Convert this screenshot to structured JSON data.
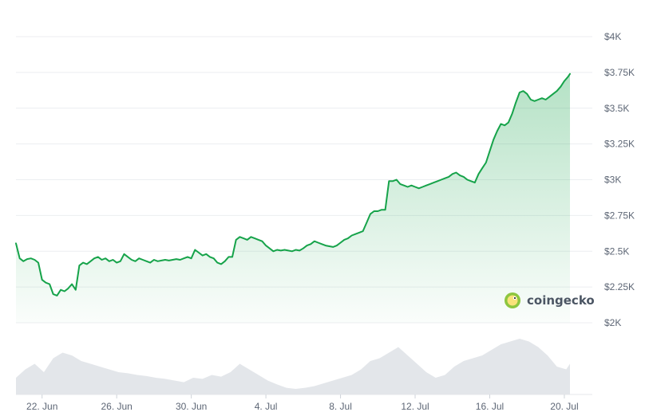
{
  "chart_data": {
    "type": "area",
    "title": "",
    "xlabel": "",
    "ylabel": "",
    "ylim": [
      2000,
      4000
    ],
    "y_ticks": [
      {
        "value": 4000,
        "label": "$4K"
      },
      {
        "value": 3750,
        "label": "$3.75K"
      },
      {
        "value": 3500,
        "label": "$3.5K"
      },
      {
        "value": 3250,
        "label": "$3.25K"
      },
      {
        "value": 3000,
        "label": "$3K"
      },
      {
        "value": 2750,
        "label": "$2.75K"
      },
      {
        "value": 2500,
        "label": "$2.5K"
      },
      {
        "value": 2250,
        "label": "$2.25K"
      },
      {
        "value": 2000,
        "label": "$2K"
      }
    ],
    "x_range": [
      0,
      30.9
    ],
    "x_ticks": [
      {
        "day": 1.4,
        "label": "22. Jun"
      },
      {
        "day": 5.4,
        "label": "26. Jun"
      },
      {
        "day": 9.4,
        "label": "30. Jun"
      },
      {
        "day": 13.4,
        "label": "4. Jul"
      },
      {
        "day": 17.4,
        "label": "8. Jul"
      },
      {
        "day": 21.4,
        "label": "12. Jul"
      },
      {
        "day": 25.4,
        "label": "16. Jul"
      },
      {
        "day": 29.4,
        "label": "20. Jul"
      }
    ],
    "grid": true,
    "line_color": "#16a34a",
    "fill_color": "#16a34a",
    "volume_color": "#d9dde3",
    "price_series": [
      [
        0.0,
        2555
      ],
      [
        0.2,
        2450
      ],
      [
        0.4,
        2430
      ],
      [
        0.6,
        2445
      ],
      [
        0.8,
        2450
      ],
      [
        1.0,
        2440
      ],
      [
        1.2,
        2420
      ],
      [
        1.4,
        2300
      ],
      [
        1.6,
        2280
      ],
      [
        1.8,
        2270
      ],
      [
        2.0,
        2200
      ],
      [
        2.2,
        2190
      ],
      [
        2.4,
        2230
      ],
      [
        2.6,
        2220
      ],
      [
        2.8,
        2240
      ],
      [
        3.0,
        2270
      ],
      [
        3.2,
        2230
      ],
      [
        3.4,
        2400
      ],
      [
        3.6,
        2420
      ],
      [
        3.8,
        2410
      ],
      [
        4.0,
        2430
      ],
      [
        4.2,
        2450
      ],
      [
        4.4,
        2460
      ],
      [
        4.6,
        2440
      ],
      [
        4.8,
        2450
      ],
      [
        5.0,
        2430
      ],
      [
        5.2,
        2440
      ],
      [
        5.4,
        2420
      ],
      [
        5.6,
        2430
      ],
      [
        5.8,
        2480
      ],
      [
        6.0,
        2460
      ],
      [
        6.2,
        2440
      ],
      [
        6.4,
        2430
      ],
      [
        6.6,
        2450
      ],
      [
        6.8,
        2440
      ],
      [
        7.0,
        2430
      ],
      [
        7.2,
        2420
      ],
      [
        7.4,
        2440
      ],
      [
        7.6,
        2430
      ],
      [
        7.8,
        2435
      ],
      [
        8.0,
        2440
      ],
      [
        8.2,
        2435
      ],
      [
        8.4,
        2440
      ],
      [
        8.6,
        2445
      ],
      [
        8.8,
        2440
      ],
      [
        9.0,
        2450
      ],
      [
        9.2,
        2460
      ],
      [
        9.4,
        2450
      ],
      [
        9.6,
        2510
      ],
      [
        9.8,
        2490
      ],
      [
        10.0,
        2470
      ],
      [
        10.2,
        2480
      ],
      [
        10.4,
        2460
      ],
      [
        10.6,
        2450
      ],
      [
        10.8,
        2420
      ],
      [
        11.0,
        2410
      ],
      [
        11.2,
        2430
      ],
      [
        11.4,
        2460
      ],
      [
        11.6,
        2460
      ],
      [
        11.8,
        2580
      ],
      [
        12.0,
        2600
      ],
      [
        12.2,
        2590
      ],
      [
        12.4,
        2580
      ],
      [
        12.6,
        2600
      ],
      [
        12.8,
        2590
      ],
      [
        13.0,
        2580
      ],
      [
        13.2,
        2570
      ],
      [
        13.4,
        2540
      ],
      [
        13.6,
        2520
      ],
      [
        13.8,
        2500
      ],
      [
        14.0,
        2510
      ],
      [
        14.2,
        2505
      ],
      [
        14.4,
        2510
      ],
      [
        14.6,
        2505
      ],
      [
        14.8,
        2500
      ],
      [
        15.0,
        2510
      ],
      [
        15.2,
        2505
      ],
      [
        15.4,
        2520
      ],
      [
        15.6,
        2540
      ],
      [
        15.8,
        2550
      ],
      [
        16.0,
        2570
      ],
      [
        16.2,
        2560
      ],
      [
        16.4,
        2550
      ],
      [
        16.6,
        2540
      ],
      [
        16.8,
        2535
      ],
      [
        17.0,
        2530
      ],
      [
        17.2,
        2540
      ],
      [
        17.4,
        2560
      ],
      [
        17.6,
        2580
      ],
      [
        17.8,
        2590
      ],
      [
        18.0,
        2610
      ],
      [
        18.2,
        2620
      ],
      [
        18.4,
        2630
      ],
      [
        18.6,
        2640
      ],
      [
        18.8,
        2700
      ],
      [
        19.0,
        2760
      ],
      [
        19.2,
        2780
      ],
      [
        19.4,
        2780
      ],
      [
        19.6,
        2790
      ],
      [
        19.8,
        2790
      ],
      [
        20.0,
        2990
      ],
      [
        20.2,
        2990
      ],
      [
        20.4,
        3000
      ],
      [
        20.6,
        2970
      ],
      [
        20.8,
        2960
      ],
      [
        21.0,
        2950
      ],
      [
        21.2,
        2960
      ],
      [
        21.4,
        2950
      ],
      [
        21.6,
        2940
      ],
      [
        21.8,
        2950
      ],
      [
        22.0,
        2960
      ],
      [
        22.2,
        2970
      ],
      [
        22.4,
        2980
      ],
      [
        22.6,
        2990
      ],
      [
        22.8,
        3000
      ],
      [
        23.0,
        3010
      ],
      [
        23.2,
        3020
      ],
      [
        23.4,
        3040
      ],
      [
        23.6,
        3050
      ],
      [
        23.8,
        3030
      ],
      [
        24.0,
        3020
      ],
      [
        24.2,
        3000
      ],
      [
        24.4,
        2990
      ],
      [
        24.6,
        2980
      ],
      [
        24.8,
        3040
      ],
      [
        25.0,
        3080
      ],
      [
        25.2,
        3120
      ],
      [
        25.4,
        3200
      ],
      [
        25.6,
        3280
      ],
      [
        25.8,
        3340
      ],
      [
        26.0,
        3390
      ],
      [
        26.2,
        3380
      ],
      [
        26.4,
        3400
      ],
      [
        26.6,
        3460
      ],
      [
        26.8,
        3540
      ],
      [
        27.0,
        3610
      ],
      [
        27.2,
        3620
      ],
      [
        27.4,
        3600
      ],
      [
        27.6,
        3560
      ],
      [
        27.8,
        3550
      ],
      [
        28.0,
        3560
      ],
      [
        28.2,
        3570
      ],
      [
        28.4,
        3560
      ],
      [
        28.6,
        3580
      ],
      [
        28.8,
        3600
      ],
      [
        29.0,
        3620
      ],
      [
        29.2,
        3650
      ],
      [
        29.4,
        3690
      ],
      [
        29.6,
        3720
      ],
      [
        29.7,
        3740
      ]
    ],
    "volume_series": [
      [
        0.0,
        0.3
      ],
      [
        0.5,
        0.45
      ],
      [
        1.0,
        0.55
      ],
      [
        1.5,
        0.4
      ],
      [
        2.0,
        0.65
      ],
      [
        2.5,
        0.75
      ],
      [
        3.0,
        0.7
      ],
      [
        3.5,
        0.6
      ],
      [
        4.0,
        0.55
      ],
      [
        4.5,
        0.5
      ],
      [
        5.0,
        0.45
      ],
      [
        5.5,
        0.4
      ],
      [
        6.0,
        0.38
      ],
      [
        6.5,
        0.35
      ],
      [
        7.0,
        0.33
      ],
      [
        7.5,
        0.3
      ],
      [
        8.0,
        0.28
      ],
      [
        8.5,
        0.25
      ],
      [
        9.0,
        0.22
      ],
      [
        9.5,
        0.3
      ],
      [
        10.0,
        0.28
      ],
      [
        10.5,
        0.35
      ],
      [
        11.0,
        0.32
      ],
      [
        11.5,
        0.4
      ],
      [
        12.0,
        0.55
      ],
      [
        12.5,
        0.45
      ],
      [
        13.0,
        0.35
      ],
      [
        13.5,
        0.25
      ],
      [
        14.0,
        0.18
      ],
      [
        14.5,
        0.12
      ],
      [
        15.0,
        0.1
      ],
      [
        15.5,
        0.12
      ],
      [
        16.0,
        0.15
      ],
      [
        16.5,
        0.2
      ],
      [
        17.0,
        0.25
      ],
      [
        17.5,
        0.3
      ],
      [
        18.0,
        0.35
      ],
      [
        18.5,
        0.45
      ],
      [
        19.0,
        0.6
      ],
      [
        19.5,
        0.65
      ],
      [
        20.0,
        0.75
      ],
      [
        20.5,
        0.85
      ],
      [
        21.0,
        0.7
      ],
      [
        21.5,
        0.55
      ],
      [
        22.0,
        0.4
      ],
      [
        22.5,
        0.3
      ],
      [
        23.0,
        0.35
      ],
      [
        23.5,
        0.5
      ],
      [
        24.0,
        0.6
      ],
      [
        24.5,
        0.65
      ],
      [
        25.0,
        0.7
      ],
      [
        25.5,
        0.8
      ],
      [
        26.0,
        0.9
      ],
      [
        26.5,
        0.95
      ],
      [
        27.0,
        1.0
      ],
      [
        27.5,
        0.95
      ],
      [
        28.0,
        0.85
      ],
      [
        28.5,
        0.7
      ],
      [
        29.0,
        0.5
      ],
      [
        29.5,
        0.45
      ],
      [
        29.7,
        0.55
      ]
    ]
  },
  "watermark": {
    "text": "coingecko",
    "icon": "coingecko-gecko-icon"
  }
}
